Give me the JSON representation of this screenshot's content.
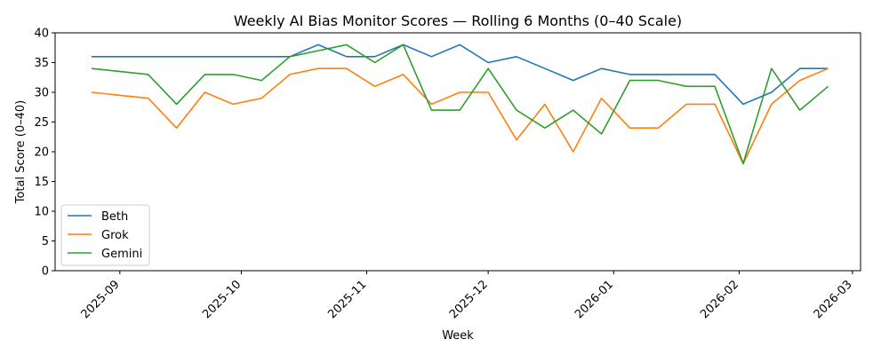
{
  "chart_data": {
    "type": "line",
    "title": "Weekly AI Bias Monitor Scores — Rolling 6 Months (0–40 Scale)",
    "xlabel": "Week",
    "ylabel": "Total Score (0–40)",
    "ylim": [
      0,
      40
    ],
    "yticks": [
      0,
      5,
      10,
      15,
      20,
      25,
      30,
      35,
      40
    ],
    "xlim": [
      "2025-08-16",
      "2026-03-03"
    ],
    "xticks": [
      "2025-09-01",
      "2025-10-01",
      "2025-11-01",
      "2025-12-01",
      "2026-01-01",
      "2026-02-01",
      "2026-03-01"
    ],
    "xtick_labels": [
      "2025-09",
      "2025-10",
      "2025-11",
      "2025-12",
      "2026-01",
      "2026-02",
      "2026-03"
    ],
    "grid": false,
    "legend_position": "lower-left",
    "x": [
      "2025-08-25",
      "2025-09-08",
      "2025-09-15",
      "2025-09-22",
      "2025-09-29",
      "2025-10-06",
      "2025-10-13",
      "2025-10-20",
      "2025-10-27",
      "2025-11-03",
      "2025-11-10",
      "2025-11-17",
      "2025-11-24",
      "2025-12-01",
      "2025-12-08",
      "2025-12-15",
      "2025-12-22",
      "2025-12-29",
      "2026-01-05",
      "2026-01-12",
      "2026-01-19",
      "2026-01-26",
      "2026-02-02",
      "2026-02-09",
      "2026-02-16",
      "2026-02-23"
    ],
    "series": [
      {
        "name": "Beth",
        "color": "#1f77b4",
        "values": [
          36,
          36,
          36,
          36,
          36,
          36,
          36,
          38,
          36,
          36,
          38,
          36,
          38,
          35,
          36,
          34,
          32,
          34,
          33,
          33,
          33,
          33,
          28,
          30,
          34,
          34
        ]
      },
      {
        "name": "Grok",
        "color": "#ff7f0e",
        "values": [
          30,
          29,
          24,
          30,
          28,
          29,
          33,
          34,
          34,
          31,
          33,
          28,
          30,
          30,
          22,
          28,
          20,
          29,
          24,
          24,
          28,
          28,
          18,
          28,
          32,
          34
        ]
      },
      {
        "name": "Gemini",
        "color": "#2ca02c",
        "values": [
          34,
          33,
          28,
          33,
          33,
          32,
          36,
          37,
          38,
          35,
          38,
          27,
          27,
          34,
          27,
          24,
          27,
          23,
          32,
          32,
          31,
          31,
          18,
          34,
          27,
          31
        ]
      }
    ]
  }
}
